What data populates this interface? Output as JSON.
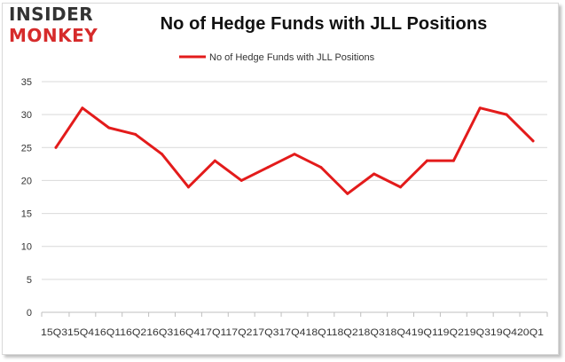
{
  "logo": {
    "line_1": "INSIDER",
    "line_2": "MONKEY"
  },
  "chart_data": {
    "type": "line",
    "title": "No of Hedge Funds with JLL Positions",
    "series": [
      {
        "name": "No of Hedge Funds with JLL Positions",
        "color": "#e31b1b",
        "values": [
          25,
          31,
          28,
          27,
          24,
          19,
          23,
          20,
          22,
          24,
          22,
          18,
          21,
          19,
          23,
          23,
          31,
          30,
          26
        ]
      }
    ],
    "categories": [
      "2015Q3",
      "2015Q4",
      "2016Q1",
      "2016Q2",
      "2016Q3",
      "2016Q4",
      "2017Q1",
      "2017Q2",
      "2017Q3",
      "2017Q4",
      "2018Q1",
      "2018Q2",
      "2018Q3",
      "2018Q4",
      "2019Q1",
      "2019Q2",
      "2019Q3",
      "2019Q4",
      "2020Q1"
    ],
    "xtick_text": "15Q315Q416Q116Q216Q316Q417Q117Q217Q317Q418Q118Q218Q318Q419Q119Q219Q319Q420Q1",
    "yticks": [
      0,
      5,
      10,
      15,
      20,
      25,
      30,
      35
    ],
    "ylim": [
      0,
      35
    ],
    "grid": true,
    "legend_position": "top"
  }
}
